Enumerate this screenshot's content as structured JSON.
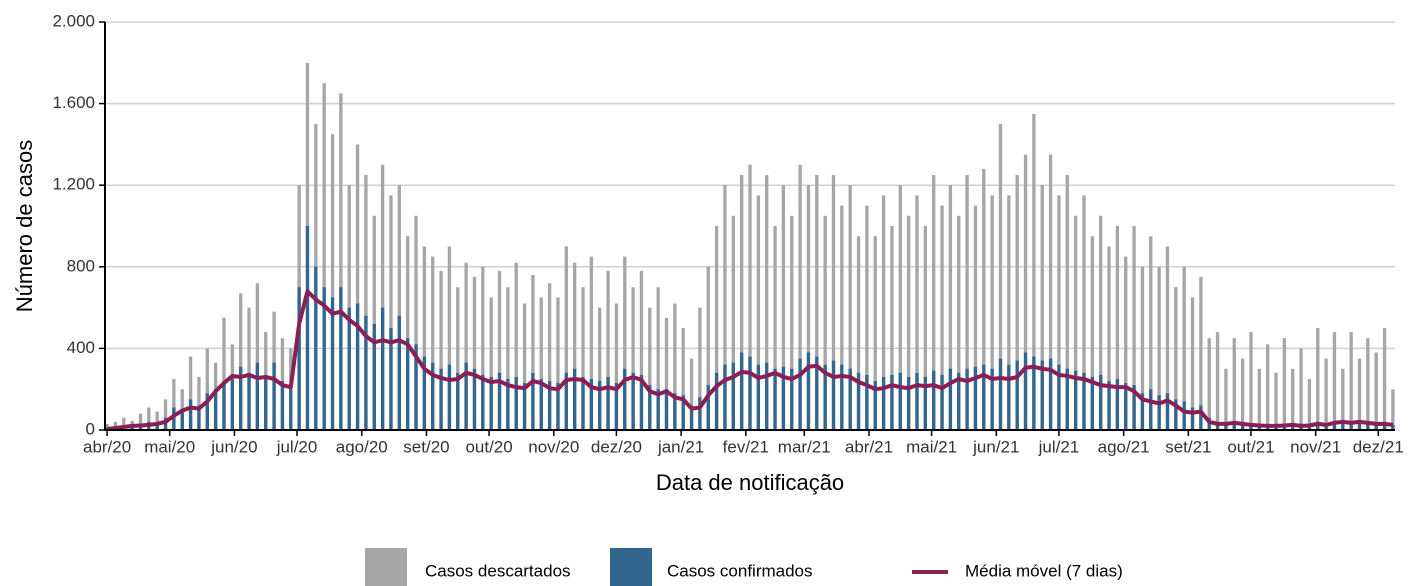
{
  "chart_data": {
    "type": "bar",
    "x_label": "Data de notificação",
    "y_label": "Número de casos",
    "xlim": [
      -1,
      617
    ],
    "ylim": [
      0,
      2000
    ],
    "yticks": [
      0,
      400,
      800,
      {
        "value": 1200,
        "label": "1.200"
      },
      {
        "value": 1600,
        "label": "1.600"
      },
      {
        "value": 2000,
        "label": "2.000"
      }
    ],
    "xticks": [
      {
        "value": 0,
        "label": "abr/20"
      },
      {
        "value": 30,
        "label": "mai/20"
      },
      {
        "value": 61,
        "label": "jun/20"
      },
      {
        "value": 91,
        "label": "jul/20"
      },
      {
        "value": 122,
        "label": "ago/20"
      },
      {
        "value": 153,
        "label": "set/20"
      },
      {
        "value": 183,
        "label": "out/20"
      },
      {
        "value": 214,
        "label": "nov/20"
      },
      {
        "value": 244,
        "label": "dez/20"
      },
      {
        "value": 275,
        "label": "jan/21"
      },
      {
        "value": 306,
        "label": "fev/21"
      },
      {
        "value": 334,
        "label": "mar/21"
      },
      {
        "value": 365,
        "label": "abr/21"
      },
      {
        "value": 395,
        "label": "mai/21"
      },
      {
        "value": 426,
        "label": "jun/21"
      },
      {
        "value": 456,
        "label": "jul/21"
      },
      {
        "value": 487,
        "label": "ago/21"
      },
      {
        "value": 518,
        "label": "set/21"
      },
      {
        "value": 548,
        "label": "out/21"
      },
      {
        "value": 579,
        "label": "nov/21"
      },
      {
        "value": 609,
        "label": "dez/21"
      }
    ],
    "grid": true,
    "legend": "bottom",
    "x": [
      0,
      4,
      8,
      12,
      16,
      20,
      24,
      28,
      32,
      36,
      40,
      44,
      48,
      52,
      56,
      60,
      64,
      68,
      72,
      76,
      80,
      84,
      88,
      92,
      96,
      100,
      104,
      108,
      112,
      116,
      120,
      124,
      128,
      132,
      136,
      140,
      144,
      148,
      152,
      156,
      160,
      164,
      168,
      172,
      176,
      180,
      184,
      188,
      192,
      196,
      200,
      204,
      208,
      212,
      216,
      220,
      224,
      228,
      232,
      236,
      240,
      244,
      248,
      252,
      256,
      260,
      264,
      268,
      272,
      276,
      280,
      284,
      288,
      292,
      296,
      300,
      304,
      308,
      312,
      316,
      320,
      324,
      328,
      332,
      336,
      340,
      344,
      348,
      352,
      356,
      360,
      364,
      368,
      372,
      376,
      380,
      384,
      388,
      392,
      396,
      400,
      404,
      408,
      412,
      416,
      420,
      424,
      428,
      432,
      436,
      440,
      444,
      448,
      452,
      456,
      460,
      464,
      468,
      472,
      476,
      480,
      484,
      488,
      492,
      496,
      500,
      504,
      508,
      512,
      516,
      520,
      524,
      528,
      532,
      536,
      540,
      544,
      548,
      552,
      556,
      560,
      564,
      568,
      572,
      576,
      580,
      584,
      588,
      592,
      596,
      600,
      604,
      608,
      612,
      616
    ],
    "series": [
      {
        "name": "Casos descartados",
        "color": "#a6a6a6",
        "values": [
          30,
          40,
          60,
          45,
          80,
          110,
          90,
          150,
          250,
          200,
          360,
          260,
          400,
          330,
          550,
          420,
          670,
          600,
          720,
          480,
          580,
          450,
          400,
          1200,
          1800,
          1500,
          1700,
          1450,
          1650,
          1200,
          1400,
          1250,
          1050,
          1300,
          1150,
          1200,
          950,
          1050,
          900,
          850,
          780,
          900,
          700,
          820,
          750,
          800,
          650,
          780,
          700,
          820,
          620,
          760,
          650,
          720,
          650,
          900,
          820,
          700,
          850,
          600,
          780,
          620,
          850,
          700,
          780,
          600,
          700,
          550,
          620,
          500,
          350,
          600,
          800,
          1000,
          1200,
          1050,
          1250,
          1300,
          1150,
          1250,
          1000,
          1200,
          1050,
          1300,
          1200,
          1250,
          1050,
          1250,
          1100,
          1200,
          950,
          1100,
          950,
          1150,
          1000,
          1200,
          1050,
          1150,
          1000,
          1250,
          1100,
          1200,
          1050,
          1250,
          1100,
          1280,
          1150,
          1500,
          1150,
          1250,
          1350,
          1550,
          1200,
          1350,
          1150,
          1250,
          1050,
          1150,
          950,
          1050,
          900,
          1000,
          850,
          1000,
          800,
          950,
          800,
          900,
          700,
          800,
          650,
          750,
          450,
          480,
          300,
          450,
          350,
          480,
          300,
          420,
          280,
          450,
          300,
          400,
          250,
          500,
          350,
          480,
          300,
          480,
          350,
          450,
          380,
          500,
          200
        ]
      },
      {
        "name": "Casos confirmados",
        "color": "#33668f",
        "values": [
          10,
          15,
          20,
          15,
          25,
          40,
          30,
          60,
          110,
          100,
          150,
          120,
          180,
          200,
          240,
          250,
          310,
          280,
          330,
          260,
          330,
          240,
          210,
          700,
          1000,
          800,
          700,
          650,
          700,
          600,
          620,
          560,
          520,
          600,
          500,
          560,
          450,
          420,
          360,
          330,
          300,
          320,
          280,
          330,
          300,
          270,
          260,
          280,
          250,
          260,
          230,
          280,
          250,
          240,
          230,
          280,
          300,
          260,
          250,
          240,
          260,
          230,
          300,
          280,
          270,
          220,
          200,
          200,
          180,
          170,
          120,
          160,
          220,
          280,
          320,
          330,
          380,
          360,
          320,
          330,
          300,
          310,
          300,
          350,
          380,
          360,
          320,
          340,
          320,
          300,
          280,
          270,
          240,
          260,
          270,
          280,
          260,
          280,
          260,
          290,
          270,
          300,
          280,
          300,
          310,
          320,
          300,
          350,
          320,
          340,
          380,
          360,
          340,
          350,
          320,
          300,
          290,
          280,
          260,
          270,
          240,
          250,
          230,
          220,
          180,
          200,
          170,
          180,
          150,
          140,
          110,
          120,
          60,
          40,
          35,
          40,
          35,
          30,
          25,
          30,
          25,
          30,
          25,
          30,
          20,
          40,
          35,
          40,
          30,
          45,
          35,
          40,
          35,
          40,
          25
        ]
      },
      {
        "name": "Média móvel (7 dias)",
        "color": "#8b1e55",
        "type": "line",
        "values": [
          5,
          10,
          15,
          20,
          22,
          25,
          30,
          40,
          70,
          95,
          110,
          105,
          140,
          190,
          230,
          265,
          260,
          270,
          255,
          260,
          250,
          220,
          210,
          520,
          680,
          640,
          610,
          570,
          580,
          540,
          510,
          460,
          430,
          440,
          430,
          440,
          420,
          360,
          300,
          270,
          255,
          245,
          250,
          280,
          270,
          250,
          235,
          240,
          220,
          210,
          205,
          240,
          230,
          205,
          200,
          245,
          250,
          245,
          210,
          200,
          210,
          200,
          245,
          260,
          245,
          190,
          175,
          190,
          160,
          150,
          105,
          110,
          170,
          215,
          245,
          260,
          285,
          280,
          255,
          265,
          280,
          260,
          250,
          270,
          310,
          315,
          280,
          260,
          265,
          260,
          235,
          220,
          200,
          205,
          220,
          210,
          205,
          220,
          215,
          220,
          205,
          230,
          250,
          240,
          255,
          270,
          250,
          255,
          250,
          260,
          305,
          310,
          300,
          295,
          270,
          265,
          255,
          250,
          235,
          220,
          215,
          210,
          210,
          190,
          150,
          140,
          130,
          145,
          120,
          90,
          85,
          90,
          40,
          30,
          30,
          35,
          30,
          25,
          22,
          20,
          20,
          22,
          25,
          20,
          22,
          30,
          25,
          35,
          40,
          35,
          40,
          35,
          30,
          30,
          25
        ]
      }
    ]
  }
}
